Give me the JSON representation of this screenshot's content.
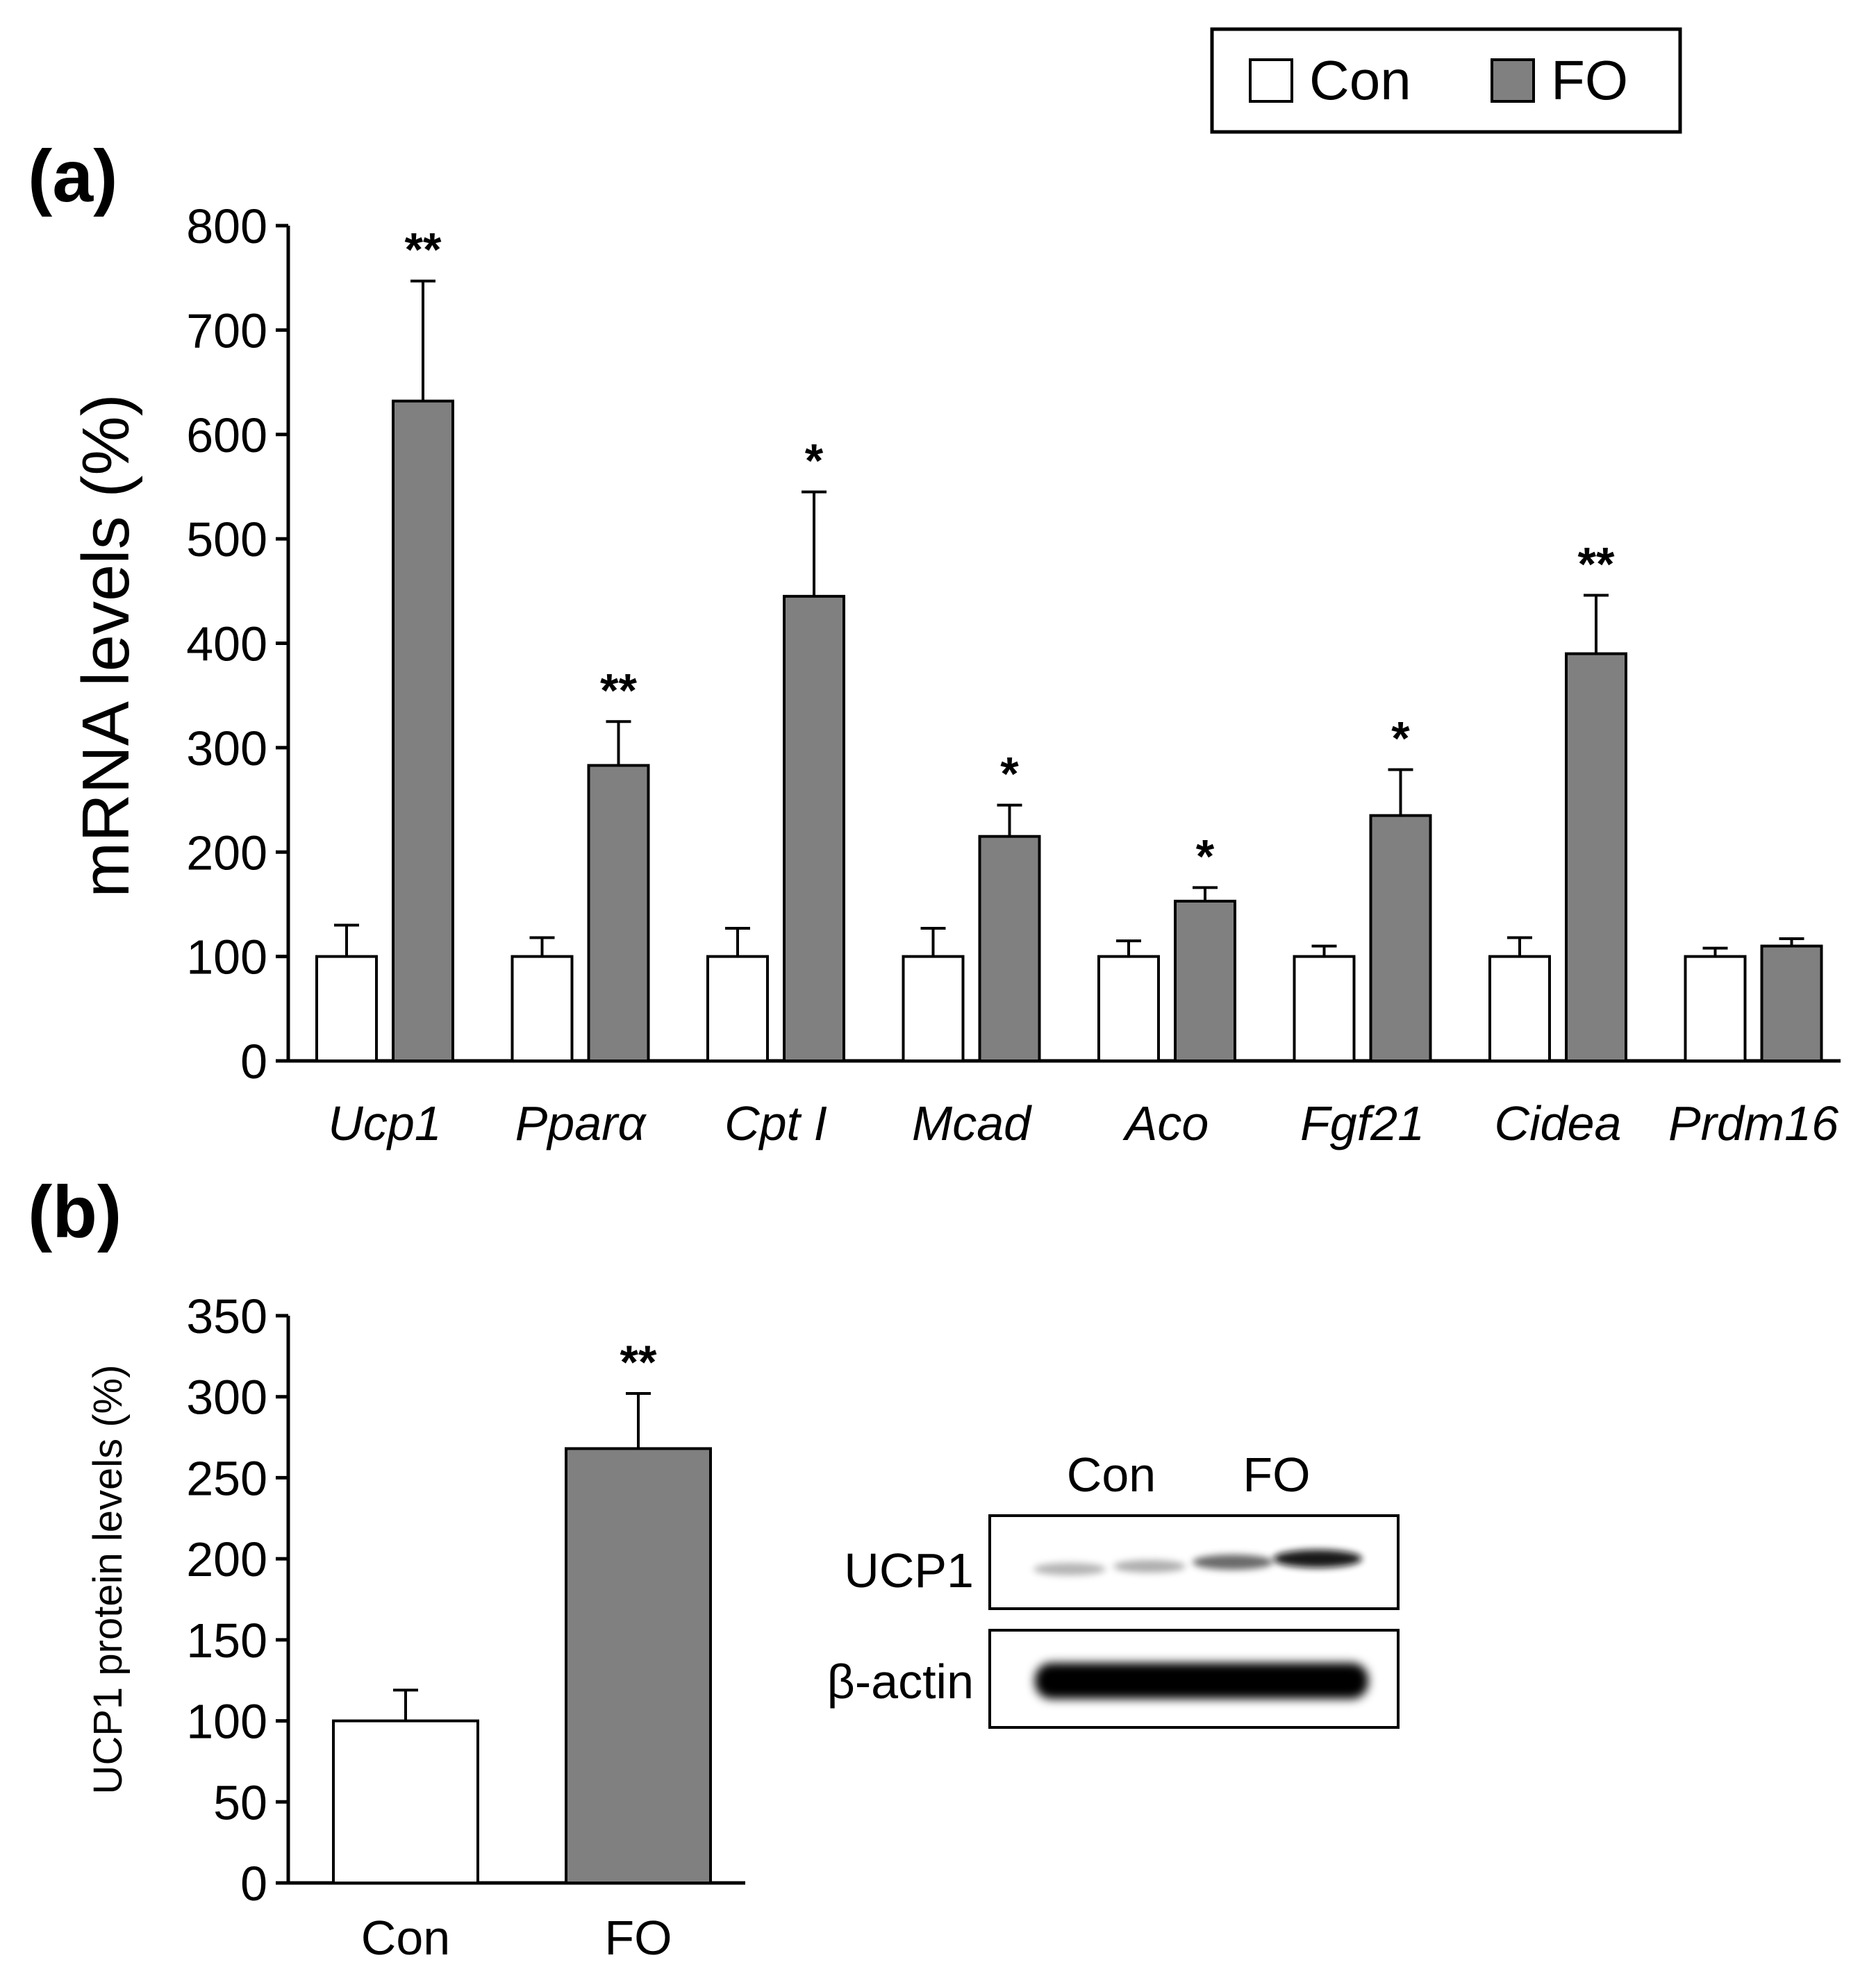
{
  "legend": {
    "items": [
      {
        "label": "Con",
        "color": "#ffffff"
      },
      {
        "label": "FO",
        "color": "#808080"
      }
    ]
  },
  "chart_data": [
    {
      "panel": "(a)",
      "type": "bar",
      "ylabel": "mRNA levels (%)",
      "ylim": [
        0,
        800
      ],
      "yticks": [
        0,
        100,
        200,
        300,
        400,
        500,
        600,
        700,
        800
      ],
      "categories": [
        "Ucp1",
        "Pparα",
        "Cpt I",
        "Mcad",
        "Aco",
        "Fgf21",
        "Cidea",
        "Prdm16"
      ],
      "series": [
        {
          "name": "Con",
          "color": "#ffffff",
          "values": [
            100,
            100,
            100,
            100,
            100,
            100,
            100,
            100
          ],
          "errors": [
            30,
            18,
            27,
            27,
            15,
            10,
            18,
            8
          ]
        },
        {
          "name": "FO",
          "color": "#808080",
          "values": [
            632,
            283,
            445,
            215,
            153,
            235,
            390,
            110
          ],
          "errors": [
            115,
            42,
            100,
            30,
            13,
            44,
            56,
            7
          ]
        }
      ],
      "significance": [
        "**",
        "**",
        "*",
        "*",
        "*",
        "*",
        "**",
        ""
      ]
    },
    {
      "panel": "(b)",
      "type": "bar",
      "ylabel": "UCP1 protein levels (%)",
      "ylim": [
        0,
        350
      ],
      "yticks": [
        0,
        50,
        100,
        150,
        200,
        250,
        300,
        350
      ],
      "categories": [
        "Con",
        "FO"
      ],
      "colors": [
        "#ffffff",
        "#808080"
      ],
      "values": [
        100,
        268
      ],
      "errors": [
        19,
        34
      ],
      "significance": [
        "",
        "**"
      ]
    }
  ],
  "blot": {
    "lane_labels": [
      "Con",
      "FO"
    ],
    "rows": [
      "UCP1",
      "β-actin"
    ]
  }
}
